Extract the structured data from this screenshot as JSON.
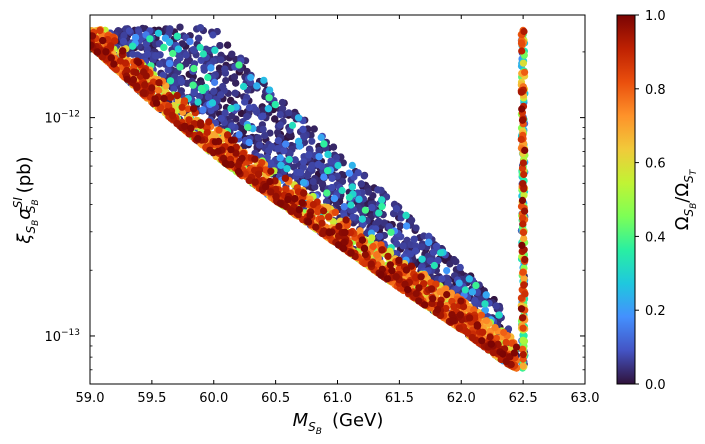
{
  "chart_data": {
    "type": "scatter",
    "title": "",
    "xlabel": {
      "symbol": "M",
      "sub": "S",
      "subsub": "B",
      "unit": "(GeV)"
    },
    "ylabel": {
      "xi": "ξ",
      "sub": "S",
      "subsub": "B",
      "sigma": "σ",
      "sup": "SI",
      "unit": "(pb)"
    },
    "colorbar_label": {
      "num": "Ω",
      "num_sub": "S",
      "num_subsub": "B",
      "den": "Ω",
      "den_sub": "S",
      "den_subsub": "T"
    },
    "xlim": [
      59.0,
      63.0
    ],
    "ylim_log10": [
      -13.22,
      -11.53
    ],
    "yscale": "log",
    "x_ticks": [
      59.0,
      59.5,
      60.0,
      60.5,
      61.0,
      61.5,
      62.0,
      62.5,
      63.0
    ],
    "x_tick_labels": [
      "59.0",
      "59.5",
      "60.0",
      "60.5",
      "61.0",
      "61.5",
      "62.0",
      "62.5",
      "63.0"
    ],
    "y_ticks": [
      {
        "base": "10",
        "exp": "−12",
        "log10": -12
      },
      {
        "base": "10",
        "exp": "−13",
        "log10": -13
      }
    ],
    "colorbar_ticks": [
      0.0,
      0.2,
      0.4,
      0.6,
      0.8,
      1.0
    ],
    "colorbar_tick_labels": [
      "0.0",
      "0.2",
      "0.4",
      "0.6",
      "0.8",
      "1.0"
    ],
    "colormap": [
      "#30123b",
      "#4454c4",
      "#4490fe",
      "#1fc8de",
      "#29efa2",
      "#7dff56",
      "#c1f334",
      "#f1ca3a",
      "#fe922a",
      "#ea4f0d",
      "#be2102",
      "#7a0403"
    ],
    "region": {
      "description": "dense scatter band of points",
      "lower_edge": [
        [
          59.0,
          -11.67
        ],
        [
          59.5,
          -11.93
        ],
        [
          60.0,
          -12.17
        ],
        [
          60.5,
          -12.38
        ],
        [
          61.0,
          -12.58
        ],
        [
          61.5,
          -12.78
        ],
        [
          62.0,
          -12.97
        ],
        [
          62.35,
          -13.12
        ],
        [
          62.45,
          -13.15
        ]
      ],
      "upper_edge": [
        [
          59.0,
          -11.6
        ],
        [
          59.5,
          -11.58
        ],
        [
          60.0,
          -11.59
        ],
        [
          60.5,
          -11.88
        ],
        [
          61.0,
          -12.15
        ],
        [
          61.5,
          -12.41
        ],
        [
          62.0,
          -12.68
        ],
        [
          62.3,
          -12.85
        ],
        [
          62.45,
          -13.05
        ]
      ],
      "resonance_spike": {
        "x": 62.5,
        "log10_range": [
          -13.15,
          -11.6
        ]
      },
      "edge_color_low": "dense low-fraction points near lower edge (orange/red)",
      "interior_color": "purple"
    }
  }
}
